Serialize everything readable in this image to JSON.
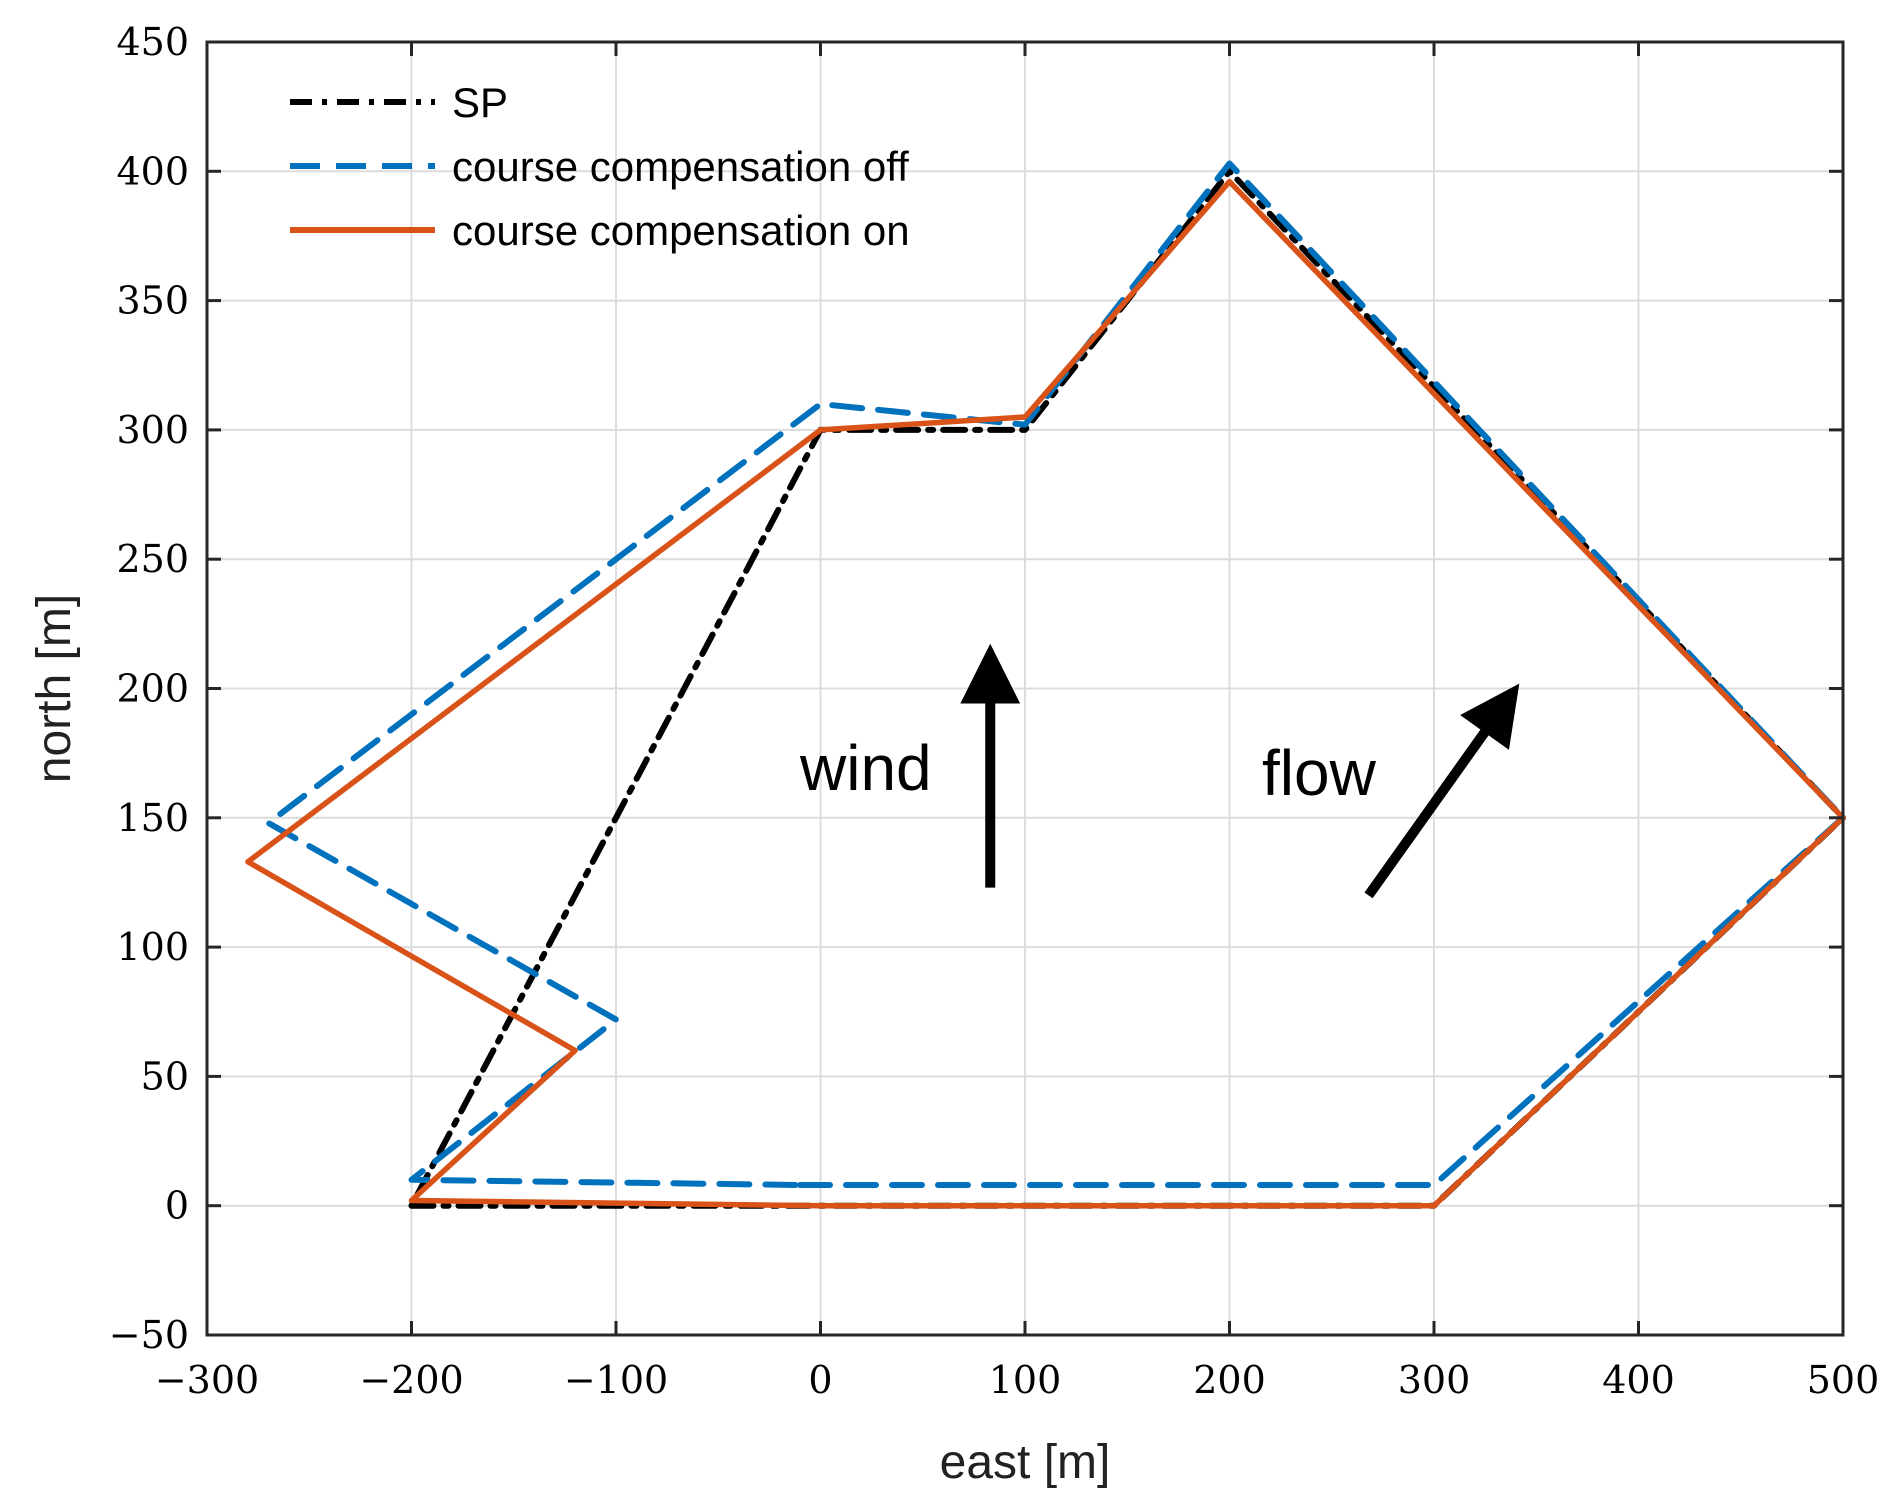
{
  "chart_data": {
    "type": "line",
    "title": "",
    "xlabel": "east  [m]",
    "ylabel": "north [m]",
    "xlim": [
      -300,
      500
    ],
    "ylim": [
      -50,
      450
    ],
    "xticks": [
      -300,
      -200,
      -100,
      0,
      100,
      200,
      300,
      400,
      500
    ],
    "yticks": [
      -50,
      0,
      50,
      100,
      150,
      200,
      250,
      300,
      350,
      400,
      450
    ],
    "xtick_labels": [
      "−300",
      "−200",
      "−100",
      "0",
      "100",
      "200",
      "300",
      "400",
      "500"
    ],
    "ytick_labels": [
      "−50",
      "0",
      "50",
      "100",
      "150",
      "200",
      "250",
      "300",
      "350",
      "400",
      "450"
    ],
    "grid": true,
    "legend_position": "top-left",
    "series": [
      {
        "name": "SP",
        "color": "#000000",
        "style": "dash-dot",
        "x": [
          -200,
          0,
          300,
          500,
          200,
          100,
          0,
          -200
        ],
        "y": [
          0,
          0,
          0,
          150,
          400,
          300,
          300,
          0
        ]
      },
      {
        "name": "course compensation off",
        "color": "#0072BD",
        "style": "dashed",
        "x": [
          -10,
          300,
          500,
          200,
          100,
          0,
          -270,
          -100,
          -200,
          -10
        ],
        "y": [
          8,
          8,
          150,
          403,
          302,
          310,
          148,
          72,
          10,
          8
        ]
      },
      {
        "name": "course compensation on",
        "color": "#D95319",
        "style": "solid",
        "x": [
          -200,
          0,
          300,
          500,
          200,
          100,
          0,
          -280,
          -120,
          -200
        ],
        "y": [
          2,
          0,
          0,
          150,
          396,
          305,
          300,
          133,
          60,
          2
        ]
      }
    ],
    "annotations": [
      {
        "text": "wind",
        "arrow_from": [
          83,
          123
        ],
        "arrow_to": [
          83,
          215
        ]
      },
      {
        "text": "flow",
        "arrow_from": [
          268,
          120
        ],
        "arrow_to": [
          340,
          200
        ]
      }
    ]
  }
}
